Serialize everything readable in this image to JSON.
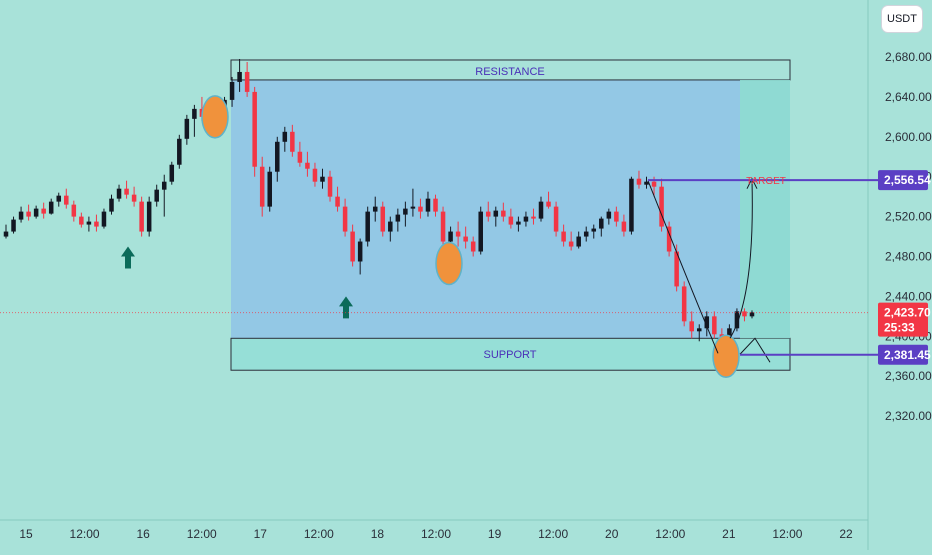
{
  "currency_label": "USDT",
  "chart_data": {
    "type": "candlestick",
    "symbol_quote": "USDT",
    "y_axis": {
      "ticks": [
        "2,680.00",
        "2,640.00",
        "2,600.00",
        "2,560.00",
        "2,520.00",
        "2,480.00",
        "2,440.00",
        "2,400.00",
        "2,360.00",
        "2,320.00"
      ],
      "tick_values": [
        2680,
        2640,
        2600,
        2560,
        2520,
        2480,
        2440,
        2400,
        2360,
        2320
      ],
      "range": [
        2303,
        2715
      ]
    },
    "x_axis": {
      "ticks": [
        "15",
        "12:00",
        "16",
        "12:00",
        "17",
        "12:00",
        "18",
        "12:00",
        "19",
        "12:00",
        "20",
        "12:00",
        "21",
        "12:00",
        "22"
      ]
    },
    "price_tags": {
      "target": {
        "value": 2556.54,
        "label": "2,556.54",
        "color": "#5b3fc4"
      },
      "current": {
        "value": 2423.7,
        "label": "2,423.70",
        "countdown": "25:33",
        "color": "#f23645"
      },
      "support": {
        "value": 2381.45,
        "label": "2,381.45",
        "color": "#5b3fc4"
      }
    },
    "zones": {
      "resistance": {
        "label": "RESISTANCE",
        "top": 2677,
        "bottom": 2657
      },
      "support": {
        "label": "SUPPORT",
        "top": 2398,
        "bottom": 2366
      },
      "range_box": {
        "top": 2657,
        "bottom": 2398
      },
      "target_label": "TARGET"
    },
    "candles": [
      [
        2500,
        2512,
        2498,
        2505
      ],
      [
        2505,
        2520,
        2503,
        2517
      ],
      [
        2517,
        2530,
        2514,
        2525
      ],
      [
        2525,
        2532,
        2516,
        2520
      ],
      [
        2520,
        2531,
        2518,
        2528
      ],
      [
        2528,
        2534,
        2518,
        2523
      ],
      [
        2523,
        2538,
        2522,
        2535
      ],
      [
        2535,
        2544,
        2530,
        2541
      ],
      [
        2541,
        2548,
        2528,
        2532
      ],
      [
        2532,
        2536,
        2515,
        2520
      ],
      [
        2520,
        2524,
        2509,
        2512
      ],
      [
        2512,
        2520,
        2505,
        2515
      ],
      [
        2515,
        2522,
        2505,
        2510
      ],
      [
        2510,
        2528,
        2508,
        2525
      ],
      [
        2525,
        2542,
        2522,
        2538
      ],
      [
        2538,
        2552,
        2535,
        2548
      ],
      [
        2548,
        2556,
        2538,
        2542
      ],
      [
        2542,
        2550,
        2530,
        2535
      ],
      [
        2535,
        2540,
        2500,
        2505
      ],
      [
        2505,
        2540,
        2500,
        2535
      ],
      [
        2535,
        2552,
        2530,
        2547
      ],
      [
        2547,
        2562,
        2520,
        2555
      ],
      [
        2555,
        2575,
        2552,
        2572
      ],
      [
        2572,
        2602,
        2568,
        2598
      ],
      [
        2598,
        2622,
        2592,
        2618
      ],
      [
        2618,
        2632,
        2600,
        2628
      ],
      [
        2628,
        2640,
        2616,
        2620
      ],
      [
        2620,
        2636,
        2610,
        2630
      ],
      [
        2630,
        2635,
        2610,
        2615
      ],
      [
        2615,
        2640,
        2612,
        2637
      ],
      [
        2637,
        2660,
        2630,
        2655
      ],
      [
        2655,
        2678,
        2645,
        2665
      ],
      [
        2665,
        2675,
        2640,
        2645
      ],
      [
        2645,
        2650,
        2560,
        2570
      ],
      [
        2570,
        2580,
        2520,
        2530
      ],
      [
        2530,
        2570,
        2525,
        2565
      ],
      [
        2565,
        2600,
        2555,
        2595
      ],
      [
        2595,
        2610,
        2585,
        2605
      ],
      [
        2605,
        2612,
        2580,
        2585
      ],
      [
        2585,
        2595,
        2570,
        2574
      ],
      [
        2574,
        2585,
        2560,
        2568
      ],
      [
        2568,
        2574,
        2550,
        2555
      ],
      [
        2555,
        2568,
        2548,
        2560
      ],
      [
        2560,
        2566,
        2535,
        2540
      ],
      [
        2540,
        2550,
        2525,
        2530
      ],
      [
        2530,
        2538,
        2500,
        2505
      ],
      [
        2505,
        2512,
        2470,
        2475
      ],
      [
        2475,
        2498,
        2462,
        2495
      ],
      [
        2495,
        2530,
        2490,
        2525
      ],
      [
        2525,
        2540,
        2515,
        2530
      ],
      [
        2530,
        2535,
        2500,
        2505
      ],
      [
        2505,
        2520,
        2495,
        2515
      ],
      [
        2515,
        2528,
        2505,
        2522
      ],
      [
        2522,
        2535,
        2510,
        2528
      ],
      [
        2528,
        2548,
        2520,
        2530
      ],
      [
        2530,
        2538,
        2518,
        2525
      ],
      [
        2525,
        2545,
        2520,
        2538
      ],
      [
        2538,
        2542,
        2520,
        2525
      ],
      [
        2525,
        2530,
        2490,
        2495
      ],
      [
        2495,
        2510,
        2485,
        2505
      ],
      [
        2505,
        2515,
        2490,
        2500
      ],
      [
        2500,
        2510,
        2488,
        2495
      ],
      [
        2495,
        2500,
        2480,
        2485
      ],
      [
        2485,
        2530,
        2482,
        2525
      ],
      [
        2525,
        2535,
        2515,
        2520
      ],
      [
        2520,
        2530,
        2510,
        2526
      ],
      [
        2526,
        2534,
        2515,
        2520
      ],
      [
        2520,
        2528,
        2508,
        2512
      ],
      [
        2512,
        2520,
        2505,
        2515
      ],
      [
        2515,
        2525,
        2510,
        2520
      ],
      [
        2520,
        2528,
        2512,
        2518
      ],
      [
        2518,
        2540,
        2515,
        2535
      ],
      [
        2535,
        2545,
        2528,
        2530
      ],
      [
        2530,
        2535,
        2500,
        2505
      ],
      [
        2505,
        2512,
        2490,
        2495
      ],
      [
        2495,
        2505,
        2486,
        2490
      ],
      [
        2490,
        2505,
        2488,
        2500
      ],
      [
        2500,
        2510,
        2495,
        2505
      ],
      [
        2505,
        2512,
        2498,
        2508
      ],
      [
        2508,
        2520,
        2500,
        2518
      ],
      [
        2518,
        2528,
        2512,
        2525
      ],
      [
        2525,
        2530,
        2510,
        2515
      ],
      [
        2515,
        2522,
        2500,
        2505
      ],
      [
        2505,
        2560,
        2502,
        2558
      ],
      [
        2558,
        2566,
        2548,
        2552
      ],
      [
        2552,
        2560,
        2548,
        2555
      ],
      [
        2555,
        2560,
        2540,
        2550
      ],
      [
        2550,
        2558,
        2505,
        2510
      ],
      [
        2510,
        2515,
        2480,
        2485
      ],
      [
        2485,
        2492,
        2445,
        2450
      ],
      [
        2450,
        2455,
        2410,
        2415
      ],
      [
        2415,
        2425,
        2398,
        2405
      ],
      [
        2405,
        2412,
        2395,
        2408
      ],
      [
        2408,
        2425,
        2400,
        2420
      ],
      [
        2420,
        2425,
        2398,
        2402
      ],
      [
        2402,
        2408,
        2385,
        2390
      ],
      [
        2390,
        2412,
        2386,
        2408
      ],
      [
        2408,
        2428,
        2405,
        2425
      ],
      [
        2425,
        2428,
        2415,
        2420
      ],
      [
        2420,
        2426,
        2418,
        2424
      ]
    ]
  }
}
